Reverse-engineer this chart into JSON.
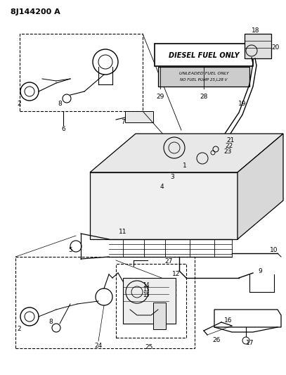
{
  "title": "8J144200 A",
  "bg_color": "#ffffff",
  "line_color": "#000000",
  "label_color": "#000000",
  "diesel_label": "DIESEL FUEL ONLY",
  "unleaded_line1": "UNLEADED FUEL ONLY",
  "unleaded_line2": "NO FUEL PUMP 25,L28 V"
}
